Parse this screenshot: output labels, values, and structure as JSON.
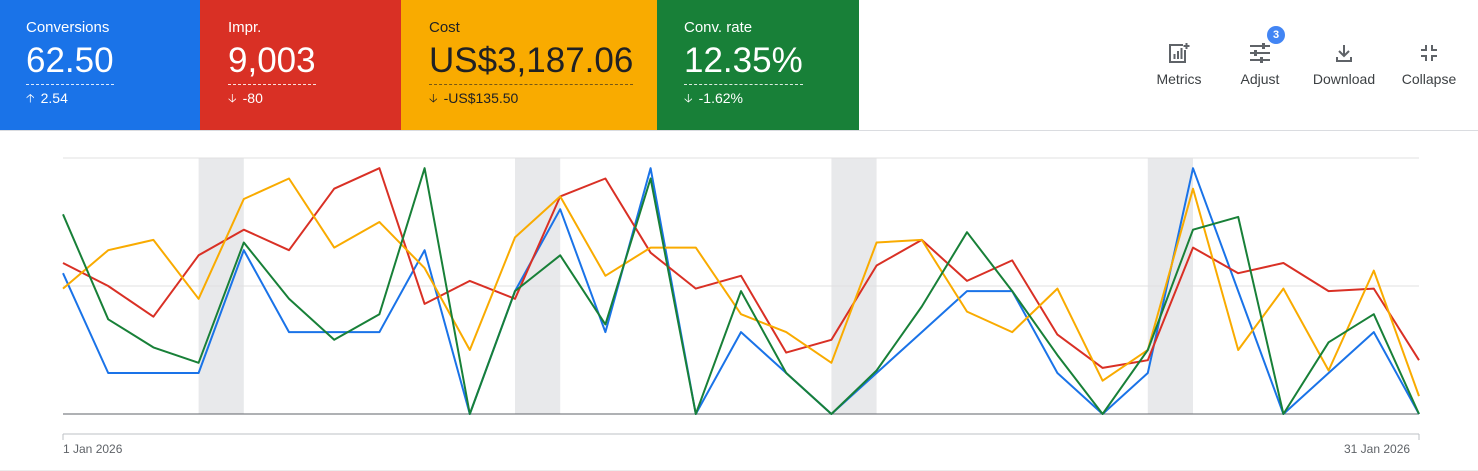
{
  "scorecards": [
    {
      "label": "Conversions",
      "value": "62.50",
      "delta": "2.54",
      "direction": "up",
      "color": "#1a73e8"
    },
    {
      "label": "Impr.",
      "value": "9,003",
      "delta": "-80",
      "direction": "down",
      "color": "#d93025"
    },
    {
      "label": "Cost",
      "value": "US$3,187.06",
      "delta": "-US$135.50",
      "direction": "down",
      "color": "#f9ab00"
    },
    {
      "label": "Conv. rate",
      "value": "12.35%",
      "delta": "-1.62%",
      "direction": "down",
      "color": "#188038"
    }
  ],
  "toolbar": {
    "metrics": "Metrics",
    "adjust": "Adjust",
    "adjust_badge": "3",
    "download": "Download",
    "collapse": "Collapse"
  },
  "chart_data": {
    "type": "line",
    "x": [
      "1 Jan 2026",
      "2 Jan 2026",
      "3 Jan 2026",
      "4 Jan 2026",
      "5 Jan 2026",
      "6 Jan 2026",
      "7 Jan 2026",
      "8 Jan 2026",
      "9 Jan 2026",
      "10 Jan 2026",
      "11 Jan 2026",
      "12 Jan 2026",
      "13 Jan 2026",
      "14 Jan 2026",
      "15 Jan 2026",
      "16 Jan 2026",
      "17 Jan 2026",
      "18 Jan 2026",
      "19 Jan 2026",
      "20 Jan 2026",
      "21 Jan 2026",
      "22 Jan 2026",
      "23 Jan 2026",
      "24 Jan 2026",
      "25 Jan 2026",
      "26 Jan 2026",
      "27 Jan 2026",
      "28 Jan 2026",
      "29 Jan 2026",
      "30 Jan 2026",
      "31 Jan 2026"
    ],
    "first_label": "1 Jan 2026",
    "last_label": "31 Jan 2026",
    "ylim": [
      0,
      1
    ],
    "grid": true,
    "shaded_ranges": [
      [
        3,
        4
      ],
      [
        10,
        11
      ],
      [
        17,
        18
      ],
      [
        24,
        25
      ]
    ],
    "series": [
      {
        "color": "#1a73e8",
        "values": [
          0.55,
          0.16,
          0.16,
          0.16,
          0.64,
          0.32,
          0.32,
          0.32,
          0.64,
          0.0,
          0.48,
          0.8,
          0.32,
          0.96,
          0.0,
          0.32,
          0.16,
          0.0,
          0.16,
          0.32,
          0.48,
          0.48,
          0.16,
          0.0,
          0.16,
          0.96,
          0.48,
          0.0,
          0.16,
          0.32,
          0.0
        ]
      },
      {
        "color": "#d93025",
        "values": [
          0.59,
          0.5,
          0.38,
          0.62,
          0.72,
          0.64,
          0.88,
          0.96,
          0.43,
          0.52,
          0.45,
          0.85,
          0.92,
          0.63,
          0.49,
          0.54,
          0.24,
          0.29,
          0.58,
          0.68,
          0.52,
          0.6,
          0.31,
          0.18,
          0.21,
          0.65,
          0.55,
          0.59,
          0.48,
          0.49,
          0.21
        ]
      },
      {
        "color": "#f9ab00",
        "values": [
          0.49,
          0.64,
          0.68,
          0.45,
          0.84,
          0.92,
          0.65,
          0.75,
          0.57,
          0.25,
          0.69,
          0.85,
          0.54,
          0.65,
          0.65,
          0.39,
          0.32,
          0.2,
          0.67,
          0.68,
          0.4,
          0.32,
          0.49,
          0.13,
          0.25,
          0.88,
          0.25,
          0.49,
          0.17,
          0.56,
          0.07
        ]
      },
      {
        "color": "#188038",
        "values": [
          0.78,
          0.37,
          0.26,
          0.2,
          0.67,
          0.45,
          0.29,
          0.39,
          0.96,
          0.0,
          0.48,
          0.62,
          0.35,
          0.92,
          0.0,
          0.48,
          0.16,
          0.0,
          0.17,
          0.42,
          0.71,
          0.48,
          0.23,
          0.0,
          0.25,
          0.72,
          0.77,
          0.0,
          0.28,
          0.39,
          0.0
        ]
      }
    ]
  }
}
